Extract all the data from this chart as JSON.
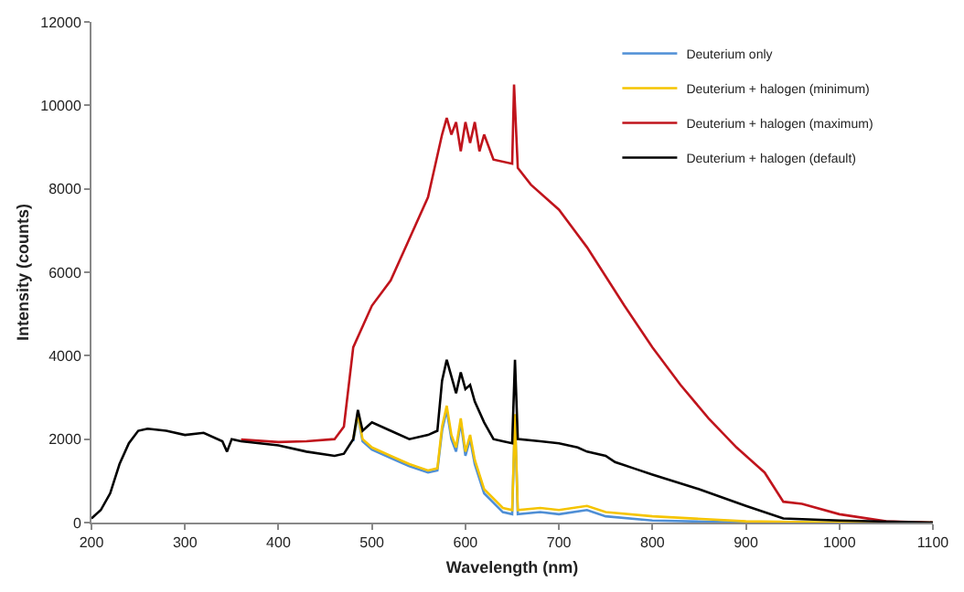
{
  "chart_data": {
    "type": "line",
    "xlabel": "Wavelength (nm)",
    "ylabel": "Intensity (counts)",
    "xlim": [
      200,
      1100
    ],
    "ylim": [
      0,
      12000
    ],
    "xticks": [
      200,
      300,
      400,
      500,
      600,
      700,
      800,
      900,
      1000,
      1100
    ],
    "yticks": [
      0,
      2000,
      4000,
      6000,
      8000,
      10000,
      12000
    ],
    "legend": "top right",
    "marker": "none",
    "line_style": "solid",
    "series": [
      {
        "name": "Deuterium only",
        "color": "#4f8fd6",
        "x": [
          480,
          485,
          490,
          500,
          520,
          540,
          560,
          570,
          575,
          580,
          585,
          590,
          595,
          600,
          605,
          610,
          620,
          640,
          650,
          653,
          656,
          680,
          700,
          730,
          750,
          800,
          900,
          1000,
          1100
        ],
        "values": [
          1950,
          2550,
          1950,
          1750,
          1550,
          1350,
          1200,
          1250,
          2200,
          2700,
          2000,
          1700,
          2400,
          1600,
          2000,
          1400,
          700,
          250,
          200,
          2500,
          200,
          250,
          200,
          300,
          150,
          50,
          0,
          0,
          0
        ]
      },
      {
        "name": "Deuterium + halogen (minimum)",
        "color": "#f5c400",
        "x": [
          480,
          485,
          490,
          500,
          520,
          540,
          560,
          570,
          575,
          580,
          585,
          590,
          595,
          600,
          605,
          610,
          620,
          640,
          650,
          653,
          656,
          680,
          700,
          730,
          750,
          800,
          900,
          1000,
          1100
        ],
        "values": [
          2000,
          2600,
          2000,
          1800,
          1600,
          1400,
          1250,
          1300,
          2300,
          2800,
          2100,
          1800,
          2500,
          1700,
          2100,
          1500,
          800,
          350,
          300,
          2600,
          300,
          350,
          300,
          400,
          250,
          150,
          30,
          0,
          0
        ]
      },
      {
        "name": "Deuterium + halogen (maximum)",
        "color": "#c0141c",
        "x": [
          360,
          400,
          430,
          460,
          470,
          480,
          500,
          520,
          540,
          560,
          575,
          580,
          585,
          590,
          595,
          600,
          605,
          610,
          615,
          620,
          630,
          650,
          652,
          656,
          670,
          700,
          730,
          750,
          770,
          800,
          830,
          860,
          890,
          920,
          940,
          960,
          1000,
          1050,
          1100
        ],
        "values": [
          1990,
          1930,
          1950,
          2000,
          2300,
          4200,
          5200,
          5800,
          6800,
          7800,
          9300,
          9700,
          9300,
          9600,
          8900,
          9600,
          9100,
          9600,
          8900,
          9300,
          8700,
          8600,
          10500,
          8500,
          8100,
          7500,
          6600,
          5900,
          5200,
          4200,
          3300,
          2500,
          1800,
          1200,
          500,
          450,
          200,
          30,
          0
        ]
      },
      {
        "name": "Deuterium + halogen (default)",
        "color": "#000000",
        "x": [
          200,
          210,
          220,
          230,
          240,
          250,
          260,
          280,
          300,
          320,
          340,
          345,
          350,
          360,
          400,
          430,
          460,
          470,
          480,
          485,
          490,
          500,
          520,
          540,
          560,
          570,
          575,
          580,
          585,
          590,
          595,
          600,
          605,
          610,
          620,
          630,
          640,
          650,
          653,
          656,
          680,
          700,
          720,
          730,
          750,
          760,
          780,
          800,
          850,
          900,
          940,
          1000,
          1100
        ],
        "values": [
          100,
          300,
          700,
          1400,
          1900,
          2200,
          2250,
          2200,
          2100,
          2150,
          1950,
          1700,
          2000,
          1950,
          1850,
          1700,
          1600,
          1650,
          2000,
          2700,
          2200,
          2400,
          2200,
          2000,
          2100,
          2200,
          3400,
          3900,
          3500,
          3100,
          3600,
          3200,
          3300,
          2900,
          2400,
          2000,
          1950,
          1900,
          3900,
          2000,
          1950,
          1900,
          1800,
          1700,
          1600,
          1450,
          1300,
          1150,
          800,
          400,
          100,
          50,
          0
        ]
      }
    ]
  }
}
